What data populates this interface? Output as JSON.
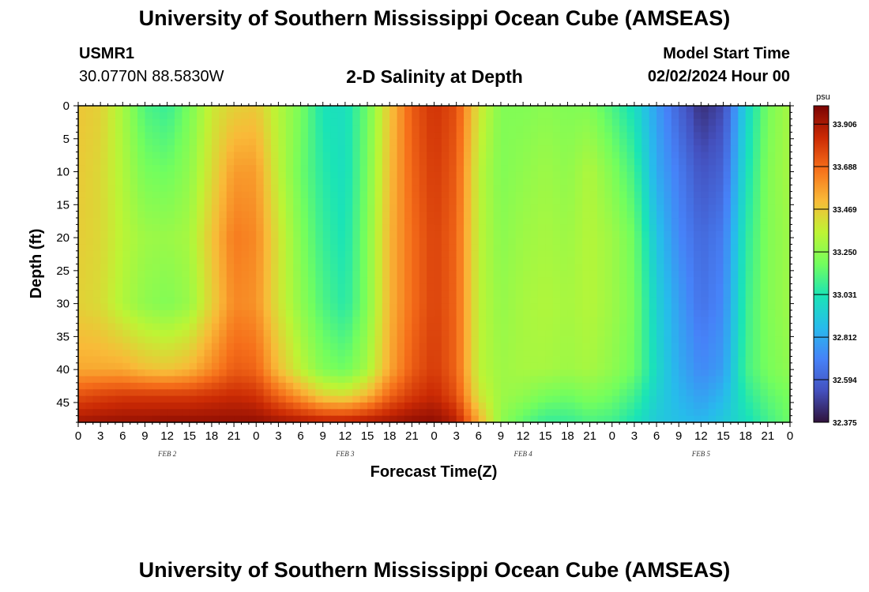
{
  "header": {
    "title": "University of Southern Mississippi Ocean Cube (AMSEAS)",
    "station": "USMR1",
    "coords": "30.0770N  88.5830W",
    "plot_title": "2-D Salinity at Depth",
    "start_label": "Model Start Time",
    "start_value": "02/02/2024 Hour 00"
  },
  "footer": {
    "title": "University of Southern Mississippi Ocean Cube (AMSEAS)"
  },
  "chart_data": {
    "type": "heatmap",
    "title": "2-D Salinity at Depth",
    "xlabel": "Forecast Time(Z)",
    "ylabel": "Depth (ft)",
    "x_range_hours": [
      0,
      96
    ],
    "x_ticks": [
      "0",
      "3",
      "6",
      "9",
      "12",
      "15",
      "18",
      "21",
      "0",
      "3",
      "6",
      "9",
      "12",
      "15",
      "18",
      "21",
      "0",
      "3",
      "6",
      "9",
      "12",
      "15",
      "18",
      "21",
      "0",
      "3",
      "6",
      "9",
      "12",
      "15",
      "18",
      "21",
      "0"
    ],
    "day_labels": [
      "FEB 2",
      "FEB 3",
      "FEB 4",
      "FEB 5"
    ],
    "day_label_hours": [
      12,
      36,
      60,
      84
    ],
    "y_range_ft": [
      0,
      48
    ],
    "y_ticks": [
      0,
      5,
      10,
      15,
      20,
      25,
      30,
      35,
      40,
      45
    ],
    "colorbar": {
      "unit": "psu",
      "min": 32.375,
      "max": 34.0,
      "ticks": [
        33.906,
        33.688,
        33.469,
        33.25,
        33.031,
        32.812,
        32.594,
        32.375
      ],
      "tick_labels": [
        "33.906",
        "33.688",
        "33.469",
        "33.250",
        "33.031",
        "32.812",
        "32.594",
        "32.375"
      ]
    },
    "salinity_profiles": {
      "depths_ft": [
        0,
        10,
        20,
        30,
        40,
        44,
        48
      ],
      "hours": [
        0,
        3,
        6,
        9,
        12,
        15,
        18,
        21,
        24,
        27,
        30,
        33,
        36,
        39,
        42,
        45,
        48,
        51,
        54,
        57,
        60,
        63,
        66,
        69,
        72,
        75,
        78,
        81,
        84,
        87,
        90,
        93,
        96
      ],
      "values": [
        [
          33.48,
          33.47,
          33.46,
          33.45,
          33.55,
          33.75,
          33.92
        ],
        [
          33.45,
          33.43,
          33.43,
          33.42,
          33.55,
          33.78,
          33.93
        ],
        [
          33.3,
          33.32,
          33.34,
          33.32,
          33.55,
          33.8,
          33.94
        ],
        [
          33.12,
          33.2,
          33.28,
          33.25,
          33.5,
          33.8,
          33.94
        ],
        [
          33.08,
          33.18,
          33.27,
          33.22,
          33.48,
          33.8,
          33.95
        ],
        [
          33.2,
          33.25,
          33.3,
          33.27,
          33.52,
          33.8,
          33.95
        ],
        [
          33.38,
          33.42,
          33.48,
          33.45,
          33.62,
          33.82,
          33.95
        ],
        [
          33.45,
          33.58,
          33.65,
          33.62,
          33.72,
          33.84,
          33.95
        ],
        [
          33.47,
          33.58,
          33.62,
          33.6,
          33.7,
          33.82,
          33.95
        ],
        [
          33.33,
          33.35,
          33.4,
          33.4,
          33.5,
          33.7,
          33.92
        ],
        [
          33.2,
          33.18,
          33.22,
          33.25,
          33.35,
          33.58,
          33.9
        ],
        [
          33.02,
          33.05,
          33.08,
          33.12,
          33.22,
          33.45,
          33.88
        ],
        [
          33.0,
          33.0,
          33.02,
          33.05,
          33.18,
          33.42,
          33.88
        ],
        [
          33.18,
          33.2,
          33.22,
          33.22,
          33.3,
          33.52,
          33.9
        ],
        [
          33.48,
          33.5,
          33.52,
          33.52,
          33.55,
          33.7,
          33.92
        ],
        [
          33.72,
          33.7,
          33.68,
          33.68,
          33.72,
          33.8,
          33.95
        ],
        [
          33.82,
          33.8,
          33.78,
          33.78,
          33.8,
          33.85,
          33.96
        ],
        [
          33.75,
          33.72,
          33.7,
          33.7,
          33.7,
          33.75,
          33.88
        ],
        [
          33.4,
          33.35,
          33.35,
          33.35,
          33.35,
          33.4,
          33.55
        ],
        [
          33.22,
          33.22,
          33.24,
          33.26,
          33.28,
          33.28,
          33.25
        ],
        [
          33.22,
          33.25,
          33.28,
          33.3,
          33.3,
          33.25,
          33.15
        ],
        [
          33.24,
          33.28,
          33.3,
          33.32,
          33.3,
          33.2,
          33.08
        ],
        [
          33.22,
          33.25,
          33.28,
          33.3,
          33.28,
          33.18,
          33.08
        ],
        [
          33.22,
          33.32,
          33.33,
          33.33,
          33.3,
          33.22,
          33.12
        ],
        [
          33.12,
          33.22,
          33.28,
          33.28,
          33.25,
          33.18,
          33.1
        ],
        [
          33.0,
          33.1,
          33.18,
          33.2,
          33.18,
          33.1,
          33.02
        ],
        [
          32.78,
          32.82,
          32.9,
          32.95,
          32.98,
          32.95,
          32.92
        ],
        [
          32.6,
          32.68,
          32.72,
          32.78,
          32.82,
          32.85,
          32.88
        ],
        [
          32.45,
          32.55,
          32.62,
          32.65,
          32.72,
          32.78,
          32.85
        ],
        [
          32.52,
          32.6,
          32.68,
          32.72,
          32.78,
          32.85,
          32.92
        ],
        [
          32.95,
          33.0,
          33.05,
          33.08,
          33.1,
          33.05,
          33.0
        ],
        [
          33.2,
          33.22,
          33.22,
          33.22,
          33.2,
          33.15,
          33.1
        ],
        [
          33.3,
          33.3,
          33.28,
          33.28,
          33.25,
          33.2,
          33.18
        ]
      ]
    }
  }
}
